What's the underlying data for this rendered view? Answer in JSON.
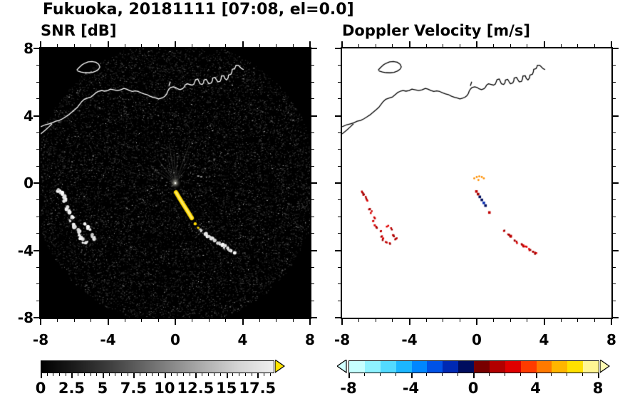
{
  "chart_data": {
    "type": "heatmap",
    "suptitle": "Fukuoka, 20181111 [07:08, el=0.0]",
    "site": "Fukuoka",
    "date": "20181111",
    "time": "07:08",
    "elevation": 0.0,
    "axis": {
      "xlim": [
        -8,
        8
      ],
      "ylim": [
        -8,
        8
      ],
      "xticks": [
        -8,
        -4,
        0,
        4,
        8
      ],
      "yticks": [
        8,
        4,
        0,
        -4,
        -8
      ],
      "xtick_labels": [
        "-8",
        "-4",
        "0",
        "4",
        "8"
      ],
      "ytick_labels": [
        "8",
        "4",
        "0",
        "-4",
        "-8"
      ],
      "minor_step": 1
    },
    "panels": [
      {
        "id": "snr",
        "title": "SNR [dB]",
        "background": "#000000",
        "coast_color": "#ffffff",
        "colorbar": {
          "type": "gradient",
          "min": 0,
          "max": 18.75,
          "ticks": [
            0,
            2.5,
            5,
            7.5,
            10,
            12.5,
            15,
            17.5
          ],
          "tick_labels": [
            "0",
            "2.5",
            "5",
            "7.5",
            "10",
            "12.5",
            "15",
            "17.5"
          ],
          "minor_step": 0.5,
          "gradient": [
            "#000000",
            "#1c1c1c",
            "#3c3c3c",
            "#626262",
            "#8a8a8a",
            "#b2b2b2",
            "#d6d6d6",
            "#efefef"
          ],
          "over_color": "#ffe400"
        }
      },
      {
        "id": "doppler",
        "title": "Doppler Velocity [m/s]",
        "background": "#ffffff",
        "coast_color": "#000000",
        "colorbar": {
          "type": "segments",
          "min": -8,
          "max": 8,
          "ticks": [
            -8,
            -4,
            0,
            4,
            8
          ],
          "tick_labels": [
            "-8",
            "-4",
            "0",
            "4",
            "8"
          ],
          "minor_step": 1,
          "segments": [
            "#c6ffff",
            "#8ef2ff",
            "#53daff",
            "#1cb6ff",
            "#0087ff",
            "#0052e6",
            "#0029b3",
            "#000d5e",
            "#780000",
            "#b20000",
            "#e00000",
            "#ff3b00",
            "#ff7a00",
            "#ffb600",
            "#ffe100",
            "#fff693"
          ],
          "under_color": "#d2ffff",
          "over_color": "#fffcb4"
        }
      }
    ],
    "radar_center": [
      0,
      0
    ],
    "noise": {
      "seed": 1111,
      "count": 13000,
      "radius": 8.45
    },
    "spokes": {
      "angles_deg": [
        52,
        62,
        70,
        78,
        85,
        92,
        99,
        107,
        116,
        126,
        138,
        148
      ],
      "max_len": 2.6
    },
    "coastline": {
      "main": [
        [
          -8,
          3.35
        ],
        [
          -7.75,
          3.45
        ],
        [
          -7.5,
          3.52
        ],
        [
          -7.3,
          3.58
        ],
        [
          -7.1,
          3.68
        ],
        [
          -6.9,
          3.72
        ],
        [
          -6.7,
          3.82
        ],
        [
          -6.5,
          3.95
        ],
        [
          -6.3,
          4.08
        ],
        [
          -6.1,
          4.25
        ],
        [
          -5.95,
          4.38
        ],
        [
          -5.8,
          4.52
        ],
        [
          -5.68,
          4.68
        ],
        [
          -5.55,
          4.85
        ],
        [
          -5.4,
          4.98
        ],
        [
          -5.2,
          5.05
        ],
        [
          -5.0,
          5.12
        ],
        [
          -4.85,
          5.25
        ],
        [
          -4.7,
          5.38
        ],
        [
          -4.55,
          5.45
        ],
        [
          -4.38,
          5.5
        ],
        [
          -4.2,
          5.46
        ],
        [
          -4.02,
          5.5
        ],
        [
          -3.85,
          5.58
        ],
        [
          -3.65,
          5.54
        ],
        [
          -3.45,
          5.5
        ],
        [
          -3.25,
          5.54
        ],
        [
          -3.05,
          5.62
        ],
        [
          -2.9,
          5.58
        ],
        [
          -2.72,
          5.5
        ],
        [
          -2.55,
          5.44
        ],
        [
          -2.38,
          5.48
        ],
        [
          -2.2,
          5.44
        ],
        [
          -2.02,
          5.36
        ],
        [
          -1.85,
          5.3
        ],
        [
          -1.65,
          5.24
        ],
        [
          -1.5,
          5.16
        ],
        [
          -1.32,
          5.1
        ],
        [
          -1.15,
          5.05
        ],
        [
          -1.0,
          5.0
        ],
        [
          -0.85,
          5.04
        ],
        [
          -0.7,
          5.1
        ],
        [
          -0.58,
          5.2
        ],
        [
          -0.5,
          5.32
        ],
        [
          -0.45,
          5.46
        ],
        [
          -0.38,
          5.58
        ],
        [
          -0.28,
          5.68
        ],
        [
          -0.12,
          5.72
        ],
        [
          0.02,
          5.68
        ],
        [
          0.14,
          5.6
        ],
        [
          0.28,
          5.55
        ],
        [
          0.42,
          5.6
        ],
        [
          0.52,
          5.7
        ],
        [
          0.58,
          5.82
        ],
        [
          0.7,
          5.9
        ],
        [
          0.85,
          5.86
        ],
        [
          1.0,
          5.82
        ],
        [
          1.1,
          5.88
        ],
        [
          1.15,
          6.0
        ],
        [
          1.2,
          6.14
        ],
        [
          1.34,
          6.18
        ],
        [
          1.4,
          6.04
        ],
        [
          1.46,
          5.9
        ],
        [
          1.6,
          5.86
        ],
        [
          1.68,
          5.96
        ],
        [
          1.7,
          6.12
        ],
        [
          1.84,
          6.16
        ],
        [
          1.92,
          6.02
        ],
        [
          2.0,
          5.9
        ],
        [
          2.14,
          5.95
        ],
        [
          2.2,
          6.08
        ],
        [
          2.22,
          6.24
        ],
        [
          2.36,
          6.28
        ],
        [
          2.44,
          6.14
        ],
        [
          2.52,
          6.02
        ],
        [
          2.66,
          6.04
        ],
        [
          2.72,
          6.2
        ],
        [
          2.74,
          6.36
        ],
        [
          2.88,
          6.38
        ],
        [
          2.94,
          6.22
        ],
        [
          3.04,
          6.12
        ],
        [
          3.14,
          6.26
        ],
        [
          3.16,
          6.42
        ],
        [
          3.3,
          6.46
        ],
        [
          3.36,
          6.6
        ],
        [
          3.38,
          6.76
        ],
        [
          3.52,
          6.8
        ],
        [
          3.58,
          6.92
        ],
        [
          3.6,
          7.0
        ],
        [
          3.74,
          7.0
        ],
        [
          3.84,
          6.9
        ],
        [
          3.94,
          6.8
        ],
        [
          4.06,
          6.74
        ]
      ],
      "branch": [
        [
          -8,
          2.92
        ],
        [
          -7.75,
          3.12
        ],
        [
          -7.5,
          3.35
        ],
        [
          -7.32,
          3.52
        ]
      ],
      "island": [
        [
          -5.85,
          6.72
        ],
        [
          -5.7,
          6.88
        ],
        [
          -5.55,
          7.02
        ],
        [
          -5.38,
          7.12
        ],
        [
          -5.18,
          7.2
        ],
        [
          -4.95,
          7.22
        ],
        [
          -4.72,
          7.18
        ],
        [
          -4.55,
          7.06
        ],
        [
          -4.48,
          6.9
        ],
        [
          -4.56,
          6.76
        ],
        [
          -4.72,
          6.65
        ],
        [
          -4.92,
          6.58
        ],
        [
          -5.15,
          6.55
        ],
        [
          -5.38,
          6.56
        ],
        [
          -5.6,
          6.6
        ],
        [
          -5.78,
          6.65
        ],
        [
          -5.85,
          6.72
        ]
      ],
      "pier": [
        [
          -0.38,
          5.78
        ],
        [
          -0.3,
          6.02
        ]
      ]
    },
    "echoes": {
      "west_arc": {
        "points": [
          [
            -6.9,
            -0.45
          ],
          [
            -6.75,
            -0.6
          ],
          [
            -6.62,
            -0.8
          ],
          [
            -6.55,
            -1.0
          ],
          [
            -6.42,
            -1.5
          ],
          [
            -6.3,
            -1.68
          ],
          [
            -6.12,
            -2.0
          ],
          [
            -6.2,
            -2.22
          ],
          [
            -6.12,
            -2.45
          ],
          [
            -5.98,
            -2.6
          ],
          [
            -5.75,
            -2.85
          ],
          [
            -5.7,
            -3.1
          ],
          [
            -5.58,
            -3.3
          ],
          [
            -5.42,
            -3.5
          ],
          [
            -5.26,
            -3.56
          ],
          [
            -5.0,
            -3.08
          ],
          [
            -4.86,
            -3.26
          ],
          [
            -5.35,
            -2.5
          ],
          [
            -5.15,
            -2.68
          ]
        ],
        "velocity_color": "#c00000"
      },
      "southeast_line": {
        "points": [
          [
            1.56,
            -2.78
          ],
          [
            1.82,
            -3.0
          ],
          [
            1.96,
            -3.1
          ],
          [
            2.2,
            -3.34
          ],
          [
            2.36,
            -3.46
          ],
          [
            2.6,
            -3.6
          ],
          [
            2.76,
            -3.7
          ],
          [
            2.9,
            -3.76
          ],
          [
            3.1,
            -3.9
          ],
          [
            3.26,
            -4.0
          ],
          [
            3.46,
            -4.14
          ]
        ],
        "velocity_color": "#c00000"
      },
      "center_streak": {
        "snr_points": [
          [
            0.04,
            -0.55
          ],
          [
            0.16,
            -0.75
          ],
          [
            0.28,
            -0.95
          ],
          [
            0.42,
            -1.18
          ],
          [
            0.56,
            -1.4
          ],
          [
            0.7,
            -1.62
          ],
          [
            0.84,
            -1.85
          ],
          [
            0.98,
            -2.08
          ]
        ],
        "snr_tail": [
          [
            1.18,
            -2.42
          ],
          [
            1.36,
            -2.66
          ],
          [
            1.52,
            -2.88
          ]
        ],
        "snr_color": "#ffd800",
        "vel_points": [
          [
            -0.02,
            -0.5
          ],
          [
            0.08,
            -0.66
          ],
          [
            0.18,
            -0.82
          ],
          [
            0.3,
            -1.0
          ],
          [
            0.42,
            -1.18
          ],
          [
            0.52,
            -1.34
          ],
          [
            0.75,
            -1.75
          ]
        ],
        "vel_colors": [
          "#c00000",
          "#a00000",
          "#000d5e",
          "#000d5e",
          "#0029b3",
          "#000d5e",
          "#c00000"
        ]
      },
      "center_arc_doppler": {
        "points": [
          [
            -0.15,
            0.28
          ],
          [
            0.0,
            0.36
          ],
          [
            0.15,
            0.4
          ],
          [
            0.3,
            0.36
          ],
          [
            0.42,
            0.28
          ],
          [
            0.1,
            0.18
          ]
        ],
        "velocity_color": "#ff9000"
      },
      "east_dash_snr": {
        "points": [
          [
            1.3,
            0.45
          ],
          [
            1.48,
            0.4
          ]
        ],
        "snr_color": "#cccccc"
      }
    }
  }
}
